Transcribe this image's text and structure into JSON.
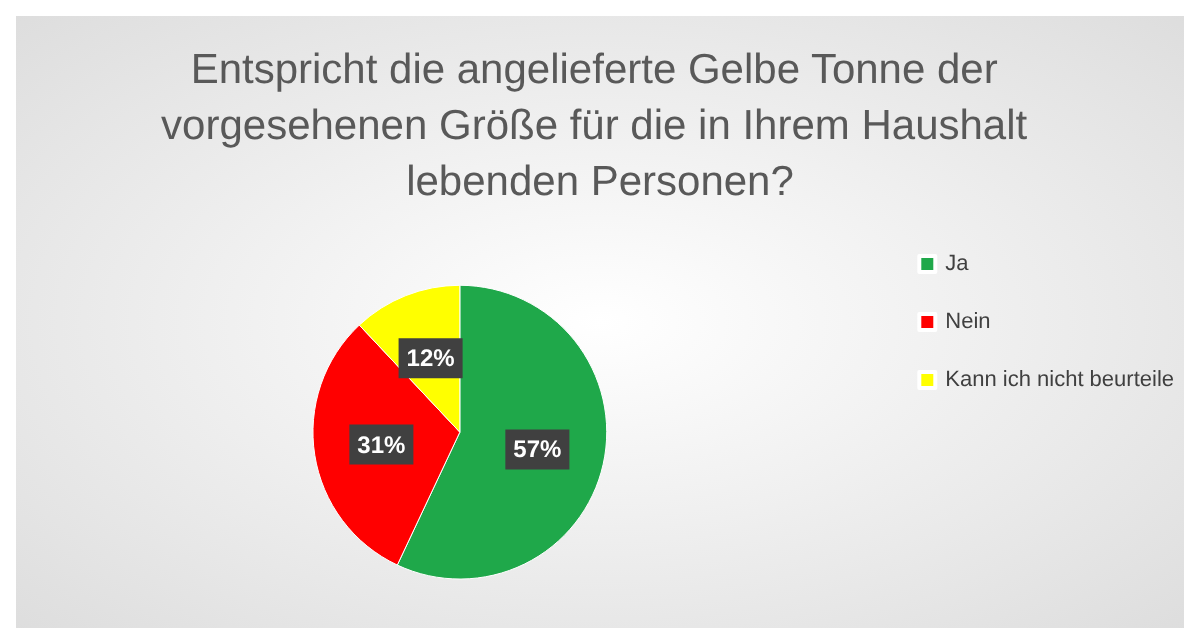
{
  "chart_data": {
    "type": "pie",
    "title": "Entspricht die angelieferte Gelbe Tonne der vorgesehenen Größe für die in Ihrem Haushalt lebenden Personen?",
    "categories": [
      "Ja",
      "Nein",
      "Kann ich nicht beurteile"
    ],
    "values": [
      57,
      31,
      12
    ],
    "colors": [
      "#1fa84a",
      "#ff0000",
      "#ffff00"
    ],
    "value_labels": [
      "57%",
      "31%",
      "12%"
    ],
    "legend": "right"
  }
}
